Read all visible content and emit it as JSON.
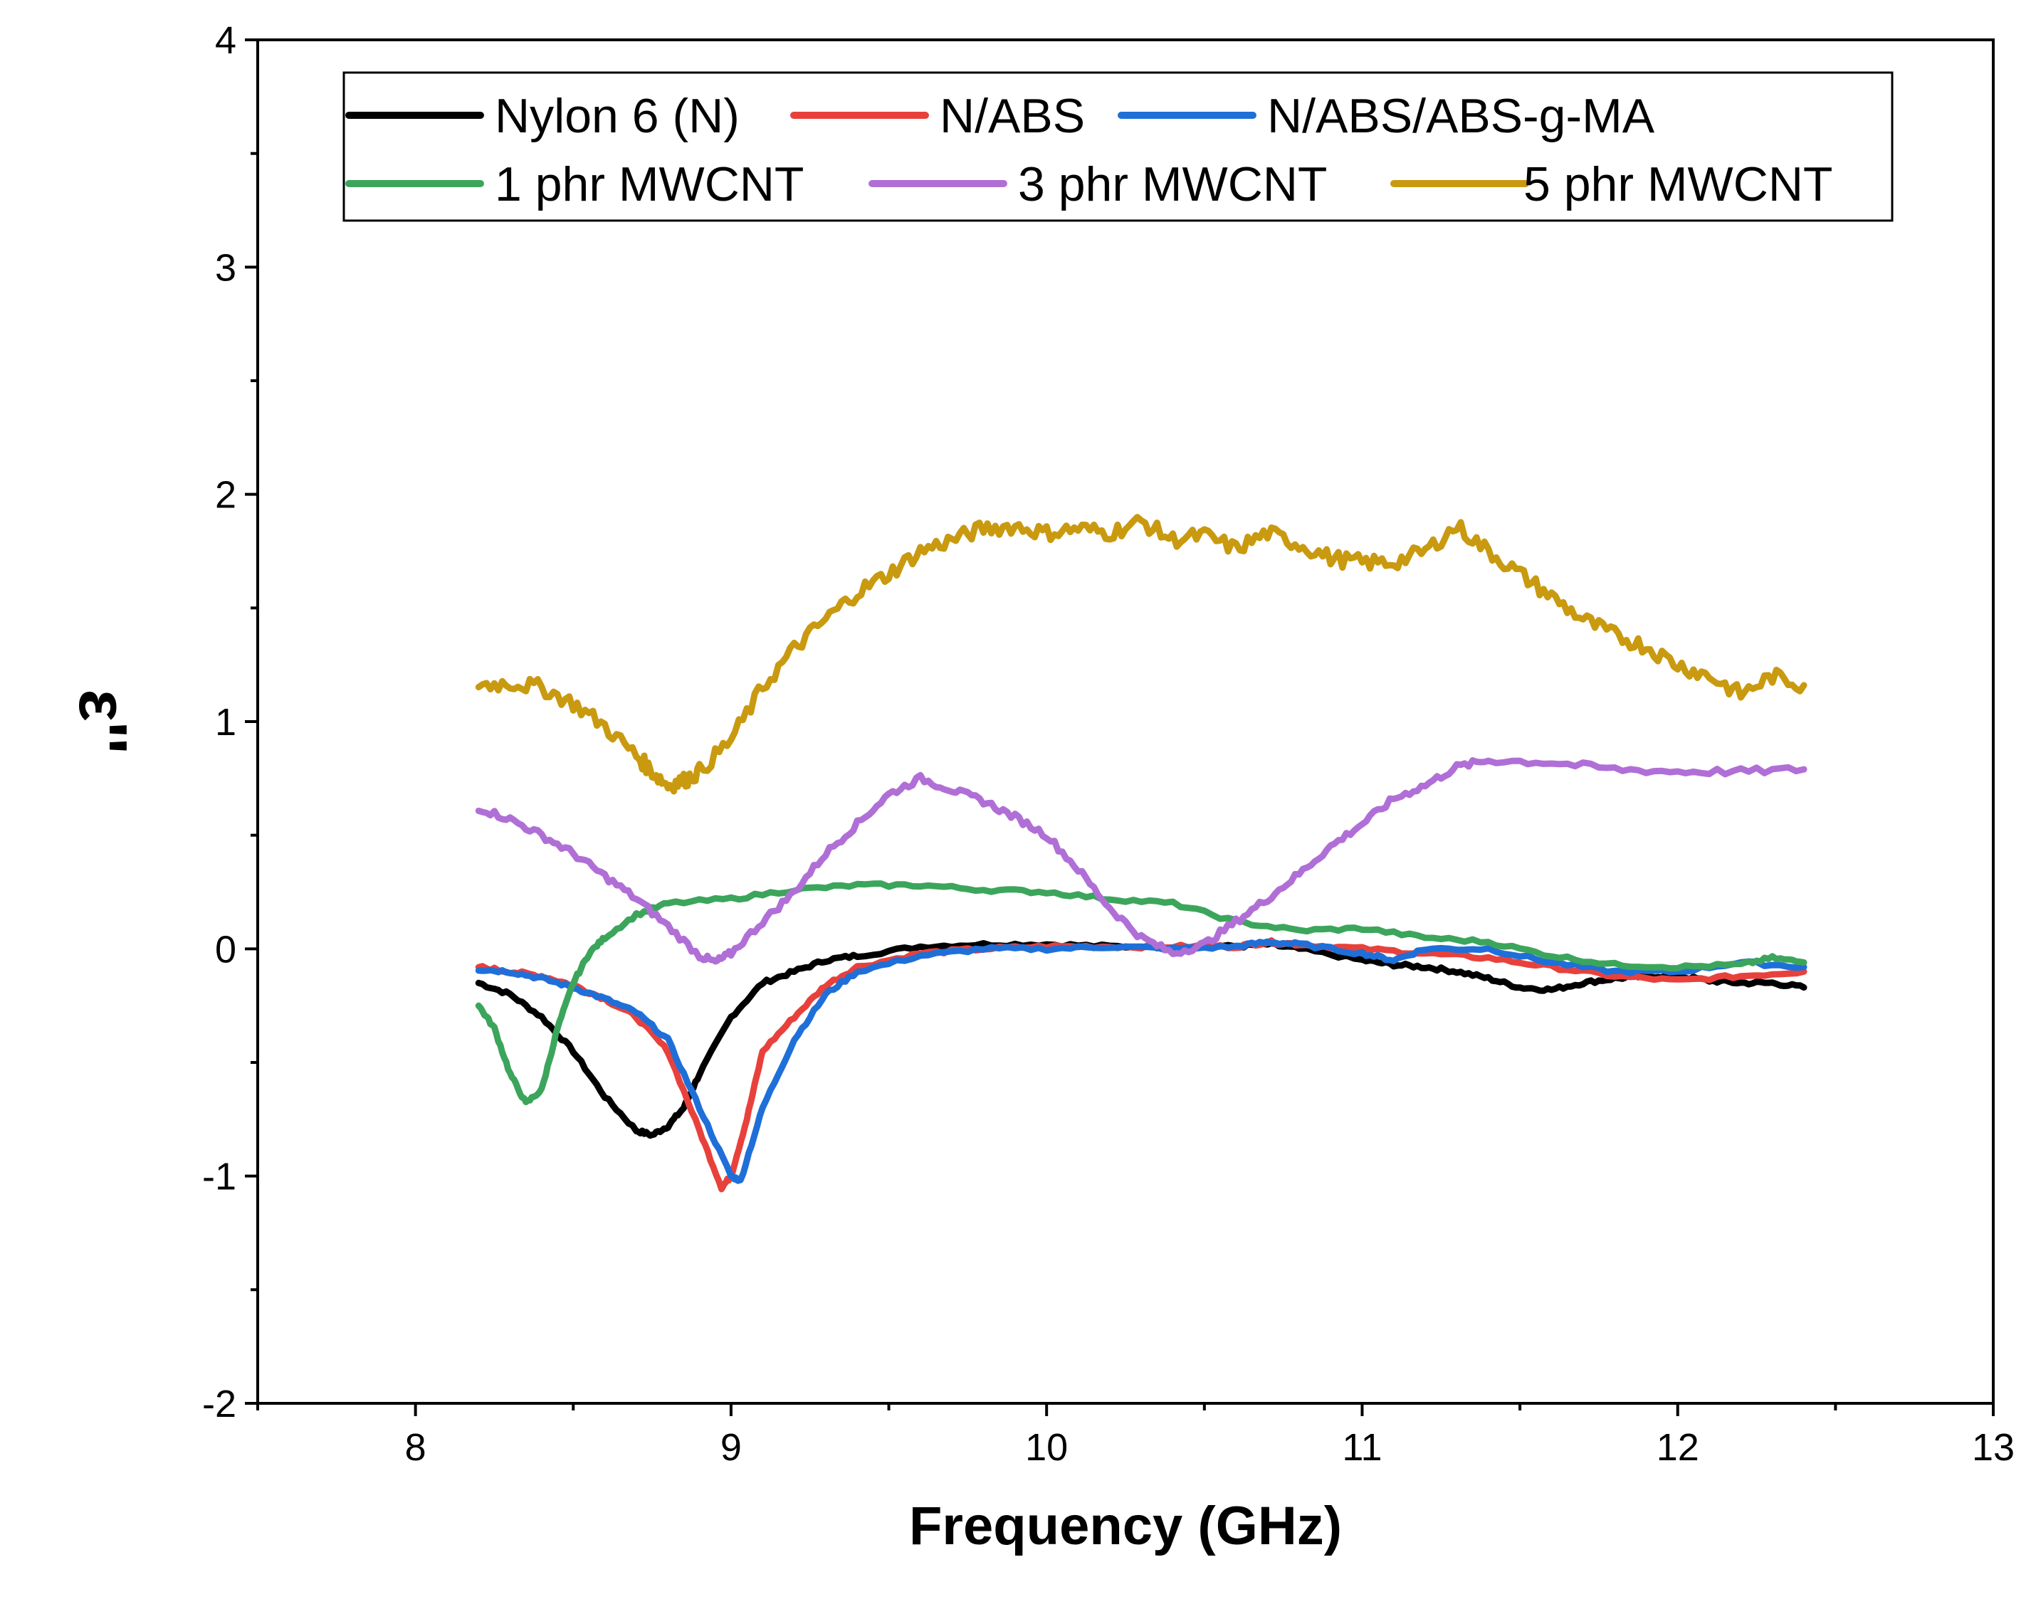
{
  "chart_data": {
    "type": "line",
    "title": "",
    "xlabel": "Frequency (GHz)",
    "ylabel": "ε''",
    "xlim": [
      7.5,
      13
    ],
    "ylim": [
      -2,
      4
    ],
    "xticks": [
      8,
      9,
      10,
      11,
      12,
      13
    ],
    "xtick_labels": [
      "8",
      "9",
      "10",
      "11",
      "12",
      "13"
    ],
    "yticks": [
      -2,
      -1,
      0,
      1,
      2,
      3,
      4
    ],
    "ytick_labels": [
      "-2",
      "-1",
      "0",
      "1",
      "2",
      "3",
      "4"
    ],
    "legend": {
      "placement": "top",
      "columns": 3
    },
    "series": [
      {
        "name": "Nylon 6 (N)",
        "color": "#000000",
        "x": [
          8.2,
          8.3,
          8.4,
          8.5,
          8.6,
          8.7,
          8.75,
          8.8,
          8.85,
          8.9,
          9.0,
          9.1,
          9.2,
          9.3,
          9.4,
          9.6,
          9.8,
          10.0,
          10.2,
          10.4,
          10.6,
          10.7,
          10.8,
          11.0,
          11.1,
          11.2,
          11.3,
          11.4,
          11.5,
          11.6,
          11.7,
          11.8,
          11.9,
          12.0,
          12.1,
          12.2,
          12.3,
          12.4
        ],
        "y": [
          -0.15,
          -0.2,
          -0.3,
          -0.45,
          -0.65,
          -0.8,
          -0.82,
          -0.78,
          -0.7,
          -0.55,
          -0.3,
          -0.15,
          -0.1,
          -0.05,
          -0.03,
          0.01,
          0.02,
          0.02,
          0.01,
          0.01,
          0.01,
          0.02,
          0.0,
          -0.05,
          -0.07,
          -0.08,
          -0.1,
          -0.13,
          -0.17,
          -0.18,
          -0.15,
          -0.13,
          -0.12,
          -0.12,
          -0.14,
          -0.15,
          -0.15,
          -0.17
        ]
      },
      {
        "name": "N/ABS",
        "color": "#e8413c",
        "x": [
          8.2,
          8.3,
          8.4,
          8.5,
          8.6,
          8.7,
          8.8,
          8.9,
          8.97,
          9.0,
          9.05,
          9.1,
          9.2,
          9.3,
          9.4,
          9.6,
          9.8,
          10.0,
          10.2,
          10.4,
          10.6,
          10.7,
          10.8,
          11.0,
          11.2,
          11.4,
          11.6,
          11.8,
          12.0,
          12.2,
          12.4
        ],
        "y": [
          -0.08,
          -0.1,
          -0.12,
          -0.16,
          -0.22,
          -0.3,
          -0.45,
          -0.8,
          -1.05,
          -1.0,
          -0.75,
          -0.45,
          -0.3,
          -0.16,
          -0.08,
          -0.02,
          0.0,
          0.01,
          0.01,
          0.01,
          0.01,
          0.03,
          0.02,
          0.0,
          -0.02,
          -0.04,
          -0.08,
          -0.12,
          -0.14,
          -0.12,
          -0.1
        ]
      },
      {
        "name": "N/ABS/ABS-g-MA",
        "color": "#1f6fd9",
        "x": [
          8.2,
          8.3,
          8.4,
          8.5,
          8.6,
          8.7,
          8.8,
          8.9,
          9.0,
          9.03,
          9.1,
          9.2,
          9.3,
          9.4,
          9.6,
          9.8,
          10.0,
          10.2,
          10.4,
          10.6,
          10.7,
          10.8,
          11.0,
          11.1,
          11.2,
          11.4,
          11.6,
          11.8,
          12.0,
          12.2,
          12.4
        ],
        "y": [
          -0.09,
          -0.1,
          -0.13,
          -0.17,
          -0.22,
          -0.28,
          -0.4,
          -0.7,
          -1.0,
          -1.02,
          -0.7,
          -0.4,
          -0.2,
          -0.1,
          -0.03,
          0.0,
          0.0,
          0.01,
          0.0,
          0.01,
          0.03,
          0.02,
          -0.02,
          -0.05,
          0.0,
          0.0,
          -0.06,
          -0.1,
          -0.1,
          -0.06,
          -0.08
        ]
      },
      {
        "name": "1 phr MWCNT",
        "color": "#3ca55c",
        "x": [
          8.2,
          8.25,
          8.3,
          8.35,
          8.4,
          8.45,
          8.5,
          8.55,
          8.6,
          8.7,
          8.8,
          9.0,
          9.2,
          9.4,
          9.6,
          9.8,
          10.0,
          10.2,
          10.4,
          10.6,
          10.8,
          11.0,
          11.2,
          11.4,
          11.6,
          11.8,
          12.0,
          12.2,
          12.3,
          12.4
        ],
        "y": [
          -0.25,
          -0.35,
          -0.55,
          -0.68,
          -0.62,
          -0.35,
          -0.15,
          -0.02,
          0.05,
          0.15,
          0.2,
          0.22,
          0.26,
          0.28,
          0.28,
          0.26,
          0.25,
          0.22,
          0.2,
          0.12,
          0.08,
          0.09,
          0.05,
          0.03,
          -0.03,
          -0.07,
          -0.08,
          -0.07,
          -0.04,
          -0.06
        ]
      },
      {
        "name": "3 phr MWCNT",
        "color": "#b06fd6",
        "x": [
          8.2,
          8.3,
          8.4,
          8.5,
          8.6,
          8.7,
          8.8,
          8.9,
          8.95,
          9.0,
          9.1,
          9.2,
          9.3,
          9.4,
          9.5,
          9.6,
          9.7,
          9.8,
          9.9,
          10.0,
          10.1,
          10.2,
          10.3,
          10.4,
          10.5,
          10.6,
          10.7,
          10.8,
          10.9,
          11.0,
          11.1,
          11.2,
          11.3,
          11.4,
          11.6,
          11.8,
          12.0,
          12.2,
          12.4
        ],
        "y": [
          0.62,
          0.57,
          0.5,
          0.42,
          0.32,
          0.22,
          0.1,
          -0.03,
          -0.06,
          -0.02,
          0.12,
          0.25,
          0.42,
          0.55,
          0.68,
          0.75,
          0.7,
          0.65,
          0.58,
          0.5,
          0.35,
          0.18,
          0.05,
          -0.02,
          0.02,
          0.12,
          0.22,
          0.33,
          0.45,
          0.55,
          0.66,
          0.72,
          0.8,
          0.83,
          0.82,
          0.79,
          0.78,
          0.78,
          0.79
        ]
      },
      {
        "name": "5 phr MWCNT",
        "color": "#c99a10",
        "x": [
          8.2,
          8.3,
          8.4,
          8.5,
          8.6,
          8.7,
          8.75,
          8.8,
          8.85,
          8.9,
          9.0,
          9.1,
          9.2,
          9.3,
          9.4,
          9.5,
          9.6,
          9.7,
          9.8,
          9.9,
          10.0,
          10.1,
          10.2,
          10.3,
          10.4,
          10.5,
          10.6,
          10.7,
          10.8,
          10.9,
          11.0,
          11.1,
          11.2,
          11.3,
          11.4,
          11.5,
          11.6,
          11.7,
          11.8,
          11.9,
          12.0,
          12.1,
          12.2,
          12.3,
          12.4
        ],
        "y": [
          1.16,
          1.17,
          1.15,
          1.08,
          0.98,
          0.85,
          0.78,
          0.72,
          0.74,
          0.78,
          0.92,
          1.15,
          1.32,
          1.45,
          1.57,
          1.65,
          1.75,
          1.8,
          1.85,
          1.86,
          1.83,
          1.85,
          1.83,
          1.88,
          1.8,
          1.82,
          1.76,
          1.83,
          1.78,
          1.72,
          1.7,
          1.7,
          1.75,
          1.86,
          1.75,
          1.65,
          1.55,
          1.45,
          1.38,
          1.33,
          1.25,
          1.2,
          1.12,
          1.2,
          1.16
        ]
      }
    ]
  }
}
